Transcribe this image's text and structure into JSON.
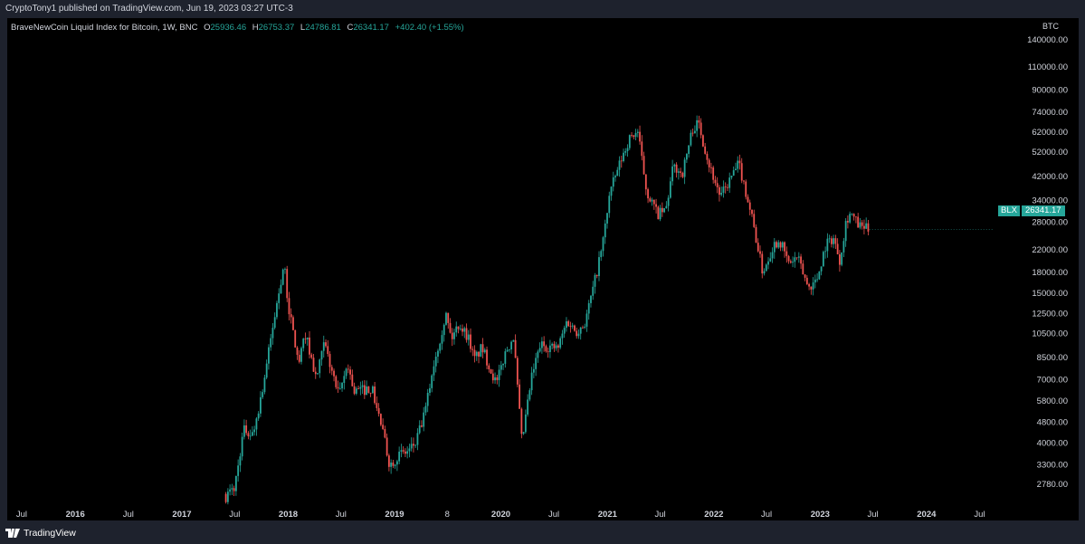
{
  "header": {
    "published": "CryptoTony1 published on TradingView.com, Jun 19, 2023 03:27 UTC-3"
  },
  "legend": {
    "symbol": "BraveNewCoin Liquid Index for Bitcoin, 1W, BNC",
    "open_label": "O",
    "open": "25936.46",
    "high_label": "H",
    "high": "26753.37",
    "low_label": "L",
    "low": "24786.81",
    "close_label": "C",
    "close": "26341.17",
    "change": "+402.40 (+1.55%)"
  },
  "currency": "BTC",
  "price_tag": {
    "symbol": "BLX",
    "price": "26341.17"
  },
  "footer": {
    "brand": "TradingView"
  },
  "colors": {
    "up": "#26a69a",
    "down": "#ef5350",
    "background": "#000000",
    "axis_text": "#d1d4dc"
  },
  "chart_data": {
    "type": "candlestick",
    "scale": "log",
    "ylim": [
      2500,
      150000
    ],
    "y_ticks": [
      "140000.00",
      "110000.00",
      "90000.00",
      "74000.00",
      "62000.00",
      "52000.00",
      "42000.00",
      "34000.00",
      "28000.00",
      "22000.00",
      "18000.00",
      "15000.00",
      "12500.00",
      "10500.00",
      "8500.00",
      "7000.00",
      "5800.00",
      "4800.00",
      "4000.00",
      "3300.00",
      "2780.00"
    ],
    "x_ticks": [
      "Jul",
      "2016",
      "Jul",
      "2017",
      "Jul",
      "2018",
      "Jul",
      "2019",
      "8",
      "2020",
      "Jul",
      "2021",
      "Jul",
      "2022",
      "Jul",
      "2023",
      "Jul",
      "2024",
      "Jul"
    ],
    "x_tick_dates": [
      "2015-07-01",
      "2016-01-01",
      "2016-07-01",
      "2017-01-01",
      "2017-07-01",
      "2018-01-01",
      "2018-07-01",
      "2019-01-01",
      "2019-07-01",
      "2020-01-01",
      "2020-07-01",
      "2021-01-01",
      "2021-07-01",
      "2022-01-01",
      "2022-07-01",
      "2023-01-01",
      "2023-07-01",
      "2024-01-01",
      "2024-07-01"
    ],
    "series": [
      {
        "interval": "1W",
        "points": [
          {
            "date": "2017-06-01",
            "close": 2500
          },
          {
            "date": "2017-07-01",
            "close": 2700
          },
          {
            "date": "2017-08-01",
            "close": 4500
          },
          {
            "date": "2017-09-01",
            "close": 4300
          },
          {
            "date": "2017-10-01",
            "close": 6100
          },
          {
            "date": "2017-11-01",
            "close": 9800
          },
          {
            "date": "2017-12-17",
            "close": 19500
          },
          {
            "date": "2018-01-01",
            "close": 13500
          },
          {
            "date": "2018-02-06",
            "close": 8000
          },
          {
            "date": "2018-03-01",
            "close": 10500
          },
          {
            "date": "2018-04-07",
            "close": 7000
          },
          {
            "date": "2018-05-05",
            "close": 9600
          },
          {
            "date": "2018-06-24",
            "close": 6000
          },
          {
            "date": "2018-07-24",
            "close": 8100
          },
          {
            "date": "2018-08-14",
            "close": 6300
          },
          {
            "date": "2018-10-15",
            "close": 6500
          },
          {
            "date": "2018-11-20",
            "close": 4500
          },
          {
            "date": "2018-12-15",
            "close": 3300
          },
          {
            "date": "2019-01-15",
            "close": 3600
          },
          {
            "date": "2019-02-15",
            "close": 3700
          },
          {
            "date": "2019-03-15",
            "close": 4000
          },
          {
            "date": "2019-04-15",
            "close": 5200
          },
          {
            "date": "2019-05-15",
            "close": 8000
          },
          {
            "date": "2019-06-26",
            "close": 12500
          },
          {
            "date": "2019-07-15",
            "close": 10000
          },
          {
            "date": "2019-08-10",
            "close": 11500
          },
          {
            "date": "2019-09-15",
            "close": 10000
          },
          {
            "date": "2019-10-01",
            "close": 8300
          },
          {
            "date": "2019-10-28",
            "close": 9300
          },
          {
            "date": "2019-12-17",
            "close": 6700
          },
          {
            "date": "2020-01-15",
            "close": 8800
          },
          {
            "date": "2020-02-13",
            "close": 10300
          },
          {
            "date": "2020-03-13",
            "close": 4000
          },
          {
            "date": "2020-04-15",
            "close": 7100
          },
          {
            "date": "2020-05-15",
            "close": 9500
          },
          {
            "date": "2020-07-15",
            "close": 9200
          },
          {
            "date": "2020-08-15",
            "close": 11800
          },
          {
            "date": "2020-09-15",
            "close": 10700
          },
          {
            "date": "2020-10-15",
            "close": 11500
          },
          {
            "date": "2020-11-15",
            "close": 16000
          },
          {
            "date": "2020-12-15",
            "close": 23000
          },
          {
            "date": "2021-01-08",
            "close": 36000
          },
          {
            "date": "2021-02-15",
            "close": 48000
          },
          {
            "date": "2021-03-15",
            "close": 58000
          },
          {
            "date": "2021-04-14",
            "close": 63000
          },
          {
            "date": "2021-05-15",
            "close": 37000
          },
          {
            "date": "2021-06-22",
            "close": 30000
          },
          {
            "date": "2021-07-20",
            "close": 31000
          },
          {
            "date": "2021-08-15",
            "close": 46000
          },
          {
            "date": "2021-09-15",
            "close": 43000
          },
          {
            "date": "2021-10-20",
            "close": 64000
          },
          {
            "date": "2021-11-10",
            "close": 67000
          },
          {
            "date": "2021-12-15",
            "close": 47000
          },
          {
            "date": "2022-01-24",
            "close": 35000
          },
          {
            "date": "2022-03-28",
            "close": 47000
          },
          {
            "date": "2022-05-10",
            "close": 30000
          },
          {
            "date": "2022-06-18",
            "close": 18000
          },
          {
            "date": "2022-07-25",
            "close": 23000
          },
          {
            "date": "2022-08-15",
            "close": 24000
          },
          {
            "date": "2022-09-15",
            "close": 19500
          },
          {
            "date": "2022-10-15",
            "close": 20500
          },
          {
            "date": "2022-11-21",
            "close": 15800
          },
          {
            "date": "2022-12-20",
            "close": 16800
          },
          {
            "date": "2023-01-20",
            "close": 23000
          },
          {
            "date": "2023-02-15",
            "close": 24500
          },
          {
            "date": "2023-03-10",
            "close": 20000
          },
          {
            "date": "2023-03-31",
            "close": 28500
          },
          {
            "date": "2023-04-14",
            "close": 30500
          },
          {
            "date": "2023-05-15",
            "close": 27000
          },
          {
            "date": "2023-06-19",
            "close": 26341.17
          }
        ]
      }
    ]
  }
}
